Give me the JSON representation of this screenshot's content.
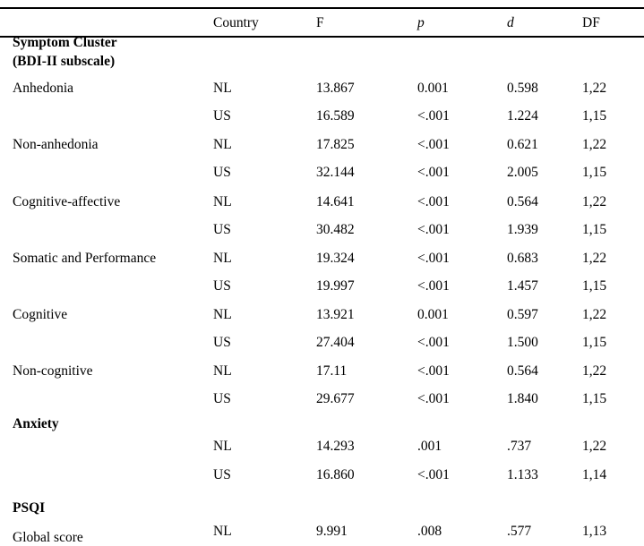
{
  "table": {
    "headers": [
      "",
      "Country",
      "F",
      "p",
      "d",
      "DF"
    ],
    "sections": [
      {
        "title": [
          "Symptom Cluster",
          "(BDI-II subscale)"
        ],
        "rows": [
          [
            "Anhedonia",
            "NL",
            "13.867",
            "0.001",
            "0.598",
            "1,22"
          ],
          [
            "",
            "US",
            "16.589",
            "<.001",
            "1.224",
            "1,15"
          ],
          [
            "Non-anhedonia",
            "NL",
            "17.825",
            "<.001",
            "0.621",
            "1,22"
          ],
          [
            "",
            "US",
            "32.144",
            "<.001",
            "2.005",
            "1,15"
          ],
          [
            "Cognitive-affective",
            "NL",
            "14.641",
            "<.001",
            "0.564",
            "1,22"
          ],
          [
            "",
            "US",
            "30.482",
            "<.001",
            "1.939",
            "1,15"
          ],
          [
            "Somatic and Performance",
            "NL",
            "19.324",
            "<.001",
            "0.683",
            "1,22"
          ],
          [
            "",
            "US",
            "19.997",
            "<.001",
            "1.457",
            "1,15"
          ],
          [
            "Cognitive",
            "NL",
            "13.921",
            "0.001",
            "0.597",
            "1,22"
          ],
          [
            "",
            "US",
            "27.404",
            "<.001",
            "1.500",
            "1,15"
          ],
          [
            "Non-cognitive",
            "NL",
            "17.11",
            "<.001",
            "0.564",
            "1,22"
          ],
          [
            "",
            "US",
            "29.677",
            "<.001",
            "1.840",
            "1,15"
          ]
        ]
      },
      {
        "title": [
          "Anxiety"
        ],
        "rows": [
          [
            "",
            "NL",
            "14.293",
            ".001",
            ".737",
            "1,22"
          ],
          [
            "",
            "US",
            "16.860",
            "<.001",
            "1.133",
            "1,14"
          ]
        ]
      },
      {
        "title": [
          "PSQI"
        ],
        "rows": [
          [
            "Global score",
            "NL",
            "9.991",
            ".008",
            ".577",
            "1,13"
          ]
        ]
      }
    ]
  }
}
